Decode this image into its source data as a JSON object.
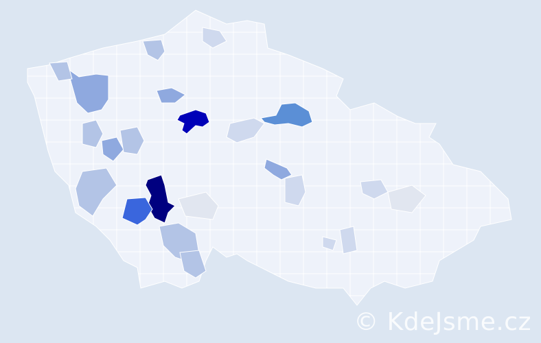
{
  "map": {
    "background_color": "#dce6f2",
    "base_region_color": "#eef2fa",
    "border_color": "#ffffff",
    "legend_colors": [
      "#e1e6f0",
      "#cfd9ee",
      "#b3c4e6",
      "#8fa9df",
      "#5b8fd6",
      "#3a66dd",
      "#0000b8",
      "#000080"
    ]
  },
  "watermark": {
    "text": "© KdeJsme.cz"
  }
}
